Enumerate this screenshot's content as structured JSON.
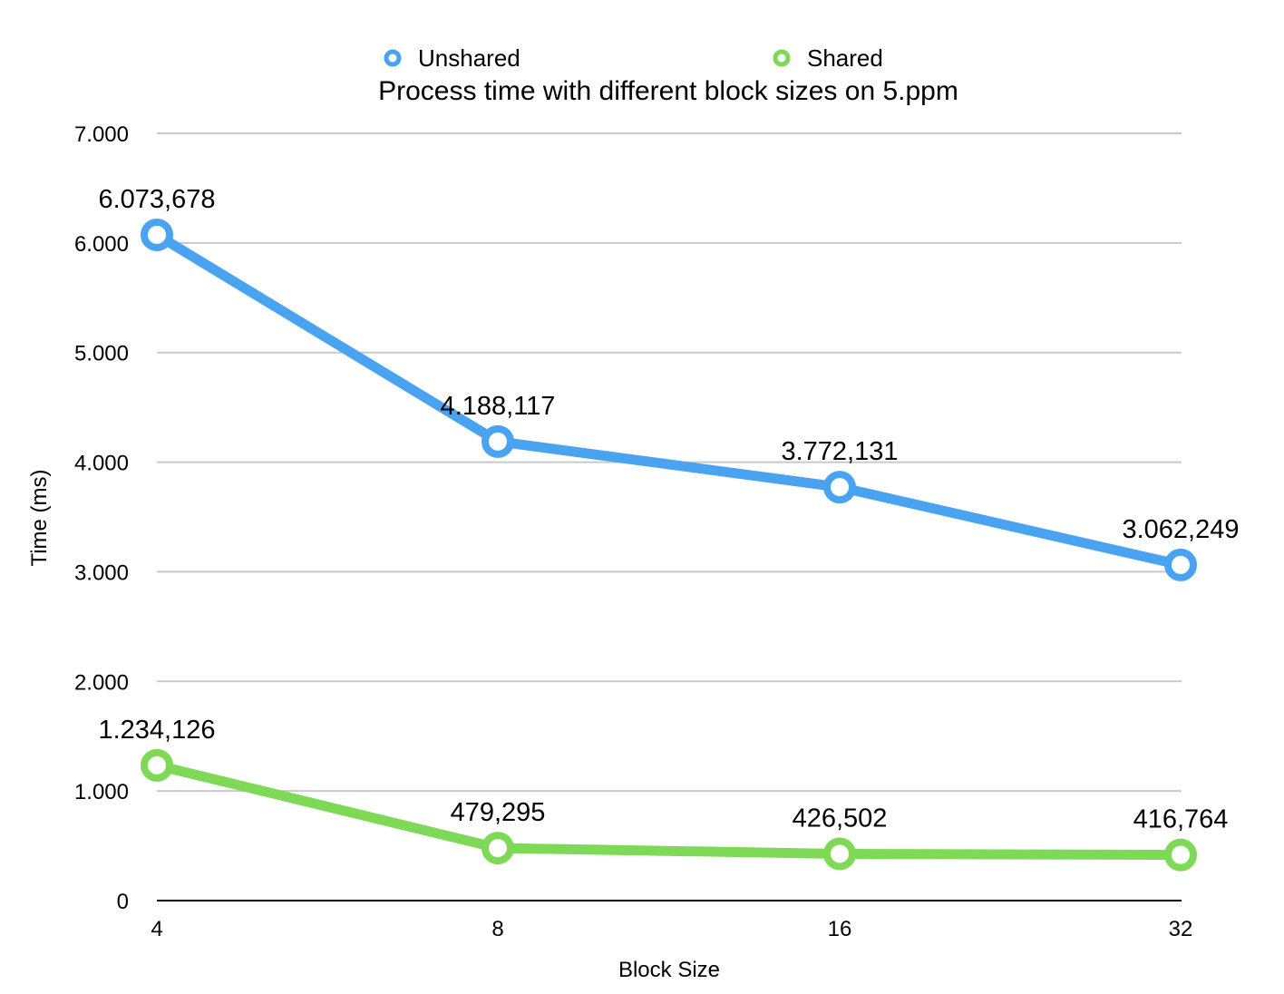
{
  "chart_data": {
    "type": "line",
    "title": "Process time with different block sizes on 5.ppm",
    "xlabel": "Block Size",
    "ylabel": "Time (ms)",
    "categories": [
      "4",
      "8",
      "16",
      "32"
    ],
    "ylim": [
      0,
      7000
    ],
    "yticks": [
      0,
      1000,
      2000,
      3000,
      4000,
      5000,
      6000,
      7000
    ],
    "ytick_labels": [
      "0",
      "1.000",
      "2.000",
      "3.000",
      "4.000",
      "5.000",
      "6.000",
      "7.000"
    ],
    "grid": true,
    "legend_position": "top",
    "series": [
      {
        "name": "Unshared",
        "color": "#4AA3F0",
        "values": [
          6073.678,
          4188.117,
          3772.131,
          3062.249
        ],
        "labels": [
          "6.073,678",
          "4.188,117",
          "3.772,131",
          "3.062,249"
        ]
      },
      {
        "name": "Shared",
        "color": "#7ED957",
        "values": [
          1234.126,
          479.295,
          426.502,
          416.764
        ],
        "labels": [
          "1.234,126",
          "479,295",
          "426,502",
          "416,764"
        ]
      }
    ]
  }
}
